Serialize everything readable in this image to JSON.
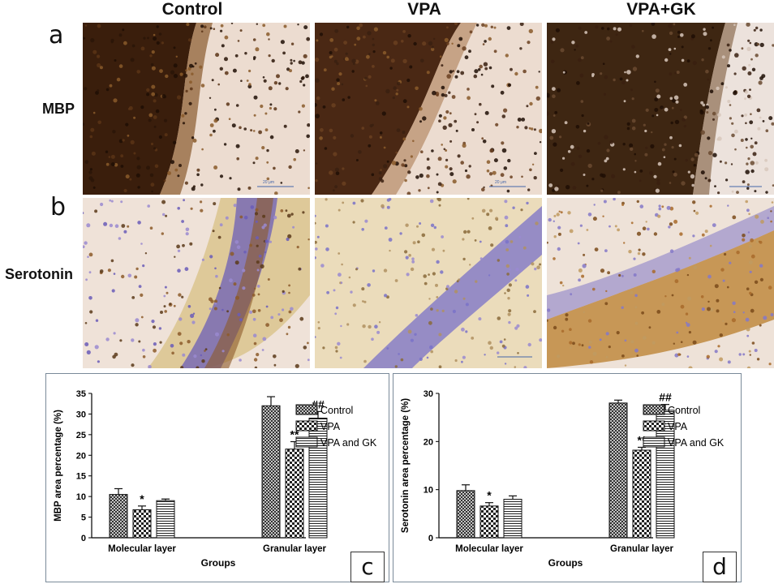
{
  "column_titles": [
    "Control",
    "VPA",
    "VPA+GK"
  ],
  "row_panels": [
    {
      "letter": "a",
      "stain": "MBP"
    },
    {
      "letter": "b",
      "stain": "Serotonin"
    }
  ],
  "scale_bar_text": "20 μm",
  "colors": {
    "frame": "#7a8a99",
    "bar_fill": "#ffffff",
    "bar_stroke": "#111111",
    "mbp_dark": "#3a1e0c",
    "mbp_bg": "#eadbcf",
    "nissl_blue": "#7a6fc4",
    "dab_brown": "#b98a3a"
  },
  "chart_data": [
    {
      "panel_letter": "c",
      "type": "bar",
      "categories": [
        "Molecular layer",
        "Granular layer"
      ],
      "xlabel": "Groups",
      "ylabel": "MBP area percentage (%)",
      "ylim": [
        0,
        35
      ],
      "yticks": [
        0,
        5,
        10,
        15,
        20,
        25,
        30,
        35
      ],
      "grid": false,
      "legend_position": "top-right",
      "series": [
        {
          "name": "Control",
          "pattern": "crosshatch",
          "values": [
            10.5,
            32.0
          ],
          "errors": [
            1.4,
            2.2
          ],
          "marks": [
            "",
            ""
          ]
        },
        {
          "name": "VPA",
          "pattern": "checker",
          "values": [
            6.8,
            21.5
          ],
          "errors": [
            0.9,
            1.8
          ],
          "marks": [
            "*",
            "**"
          ]
        },
        {
          "name": "VPA and GK",
          "pattern": "hlines",
          "values": [
            9.0,
            29.0
          ],
          "errors": [
            0.4,
            1.6
          ],
          "marks": [
            "",
            "##"
          ]
        }
      ]
    },
    {
      "panel_letter": "d",
      "type": "bar",
      "categories": [
        "Molecular layer",
        "Granular layer"
      ],
      "xlabel": "Groups",
      "ylabel": "Serotonin area percentage (%)",
      "ylim": [
        0,
        30
      ],
      "yticks": [
        0,
        10,
        20,
        30
      ],
      "grid": false,
      "legend_position": "top-right",
      "series": [
        {
          "name": "Control",
          "pattern": "crosshatch",
          "values": [
            9.8,
            28.0
          ],
          "errors": [
            1.2,
            0.6
          ],
          "marks": [
            "",
            ""
          ]
        },
        {
          "name": "VPA",
          "pattern": "checker",
          "values": [
            6.6,
            18.2
          ],
          "errors": [
            0.7,
            0.6
          ],
          "marks": [
            "*",
            "**"
          ]
        },
        {
          "name": "VPA and GK",
          "pattern": "hlines",
          "values": [
            8.0,
            26.5
          ],
          "errors": [
            0.7,
            1.2
          ],
          "marks": [
            "",
            "##"
          ]
        }
      ]
    }
  ]
}
